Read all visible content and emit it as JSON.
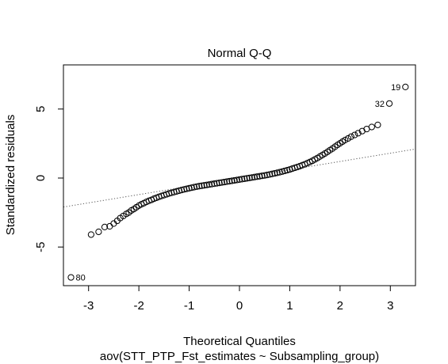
{
  "chart_data": {
    "type": "scatter",
    "title": "Normal Q-Q",
    "xlabel": "Theoretical Quantiles",
    "ylabel": "Standardized residuals",
    "subtitle": "aov(STT_PTP_Fst_estimates ~ Subsampling_group)",
    "xlim": [
      -3.5,
      3.5
    ],
    "ylim": [
      -7.8,
      8.2
    ],
    "x_ticks": [
      -3,
      -2,
      -1,
      0,
      1,
      2,
      3
    ],
    "x_tick_labels": [
      "-3",
      "-2",
      "-1",
      "0",
      "1",
      "2",
      "3"
    ],
    "y_ticks": [
      -5,
      0,
      5
    ],
    "y_tick_labels": [
      "-5",
      "0",
      "5"
    ],
    "reference_line": {
      "style": "dotted",
      "slope": 0.6,
      "intercept": 0
    },
    "grid": false,
    "point_style": "open-circle",
    "labeled_points": [
      {
        "label": "80",
        "x": -3.35,
        "y": -7.2
      },
      {
        "label": "32",
        "x": 2.98,
        "y": 5.4
      },
      {
        "label": "19",
        "x": 3.3,
        "y": 6.6
      }
    ],
    "points": [
      [
        -3.35,
        -7.2
      ],
      [
        -2.95,
        -4.1
      ],
      [
        -2.8,
        -3.9
      ],
      [
        -2.68,
        -3.55
      ],
      [
        -2.58,
        -3.5
      ],
      [
        -2.5,
        -3.3
      ],
      [
        -2.43,
        -3.1
      ],
      [
        -2.37,
        -2.9
      ],
      [
        -2.31,
        -2.75
      ],
      [
        -2.25,
        -2.6
      ],
      [
        -2.2,
        -2.5
      ],
      [
        -2.15,
        -2.35
      ],
      [
        -2.1,
        -2.25
      ],
      [
        -2.05,
        -2.12
      ],
      [
        -2.0,
        -2.0
      ],
      [
        -1.95,
        -1.9
      ],
      [
        -1.9,
        -1.82
      ],
      [
        -1.85,
        -1.73
      ],
      [
        -1.8,
        -1.65
      ],
      [
        -1.75,
        -1.58
      ],
      [
        -1.7,
        -1.5
      ],
      [
        -1.65,
        -1.43
      ],
      [
        -1.6,
        -1.36
      ],
      [
        -1.55,
        -1.3
      ],
      [
        -1.5,
        -1.24
      ],
      [
        -1.45,
        -1.18
      ],
      [
        -1.4,
        -1.12
      ],
      [
        -1.35,
        -1.07
      ],
      [
        -1.3,
        -1.02
      ],
      [
        -1.25,
        -0.97
      ],
      [
        -1.2,
        -0.92
      ],
      [
        -1.15,
        -0.87
      ],
      [
        -1.1,
        -0.82
      ],
      [
        -1.05,
        -0.78
      ],
      [
        -1.0,
        -0.74
      ],
      [
        -0.95,
        -0.7
      ],
      [
        -0.9,
        -0.66
      ],
      [
        -0.85,
        -0.62
      ],
      [
        -0.8,
        -0.59
      ],
      [
        -0.75,
        -0.56
      ],
      [
        -0.7,
        -0.53
      ],
      [
        -0.65,
        -0.5
      ],
      [
        -0.6,
        -0.47
      ],
      [
        -0.55,
        -0.44
      ],
      [
        -0.5,
        -0.41
      ],
      [
        -0.45,
        -0.38
      ],
      [
        -0.4,
        -0.35
      ],
      [
        -0.35,
        -0.32
      ],
      [
        -0.3,
        -0.29
      ],
      [
        -0.25,
        -0.26
      ],
      [
        -0.2,
        -0.23
      ],
      [
        -0.15,
        -0.2
      ],
      [
        -0.1,
        -0.17
      ],
      [
        -0.05,
        -0.14
      ],
      [
        0.0,
        -0.11
      ],
      [
        0.05,
        -0.08
      ],
      [
        0.1,
        -0.05
      ],
      [
        0.15,
        -0.02
      ],
      [
        0.2,
        0.01
      ],
      [
        0.25,
        0.04
      ],
      [
        0.3,
        0.07
      ],
      [
        0.35,
        0.1
      ],
      [
        0.4,
        0.13
      ],
      [
        0.45,
        0.16
      ],
      [
        0.5,
        0.19
      ],
      [
        0.55,
        0.22
      ],
      [
        0.6,
        0.26
      ],
      [
        0.65,
        0.3
      ],
      [
        0.7,
        0.34
      ],
      [
        0.75,
        0.38
      ],
      [
        0.8,
        0.42
      ],
      [
        0.85,
        0.47
      ],
      [
        0.9,
        0.52
      ],
      [
        0.95,
        0.57
      ],
      [
        1.0,
        0.62
      ],
      [
        1.05,
        0.68
      ],
      [
        1.1,
        0.74
      ],
      [
        1.15,
        0.8
      ],
      [
        1.2,
        0.86
      ],
      [
        1.25,
        0.93
      ],
      [
        1.3,
        1.0
      ],
      [
        1.35,
        1.08
      ],
      [
        1.4,
        1.16
      ],
      [
        1.45,
        1.25
      ],
      [
        1.5,
        1.35
      ],
      [
        1.55,
        1.45
      ],
      [
        1.6,
        1.56
      ],
      [
        1.65,
        1.67
      ],
      [
        1.7,
        1.78
      ],
      [
        1.75,
        1.9
      ],
      [
        1.8,
        2.02
      ],
      [
        1.85,
        2.14
      ],
      [
        1.9,
        2.27
      ],
      [
        1.95,
        2.4
      ],
      [
        2.0,
        2.52
      ],
      [
        2.05,
        2.64
      ],
      [
        2.1,
        2.75
      ],
      [
        2.16,
        2.87
      ],
      [
        2.22,
        3.0
      ],
      [
        2.29,
        3.12
      ],
      [
        2.36,
        3.25
      ],
      [
        2.44,
        3.4
      ],
      [
        2.53,
        3.55
      ],
      [
        2.63,
        3.7
      ],
      [
        2.75,
        3.85
      ],
      [
        2.98,
        5.4
      ],
      [
        3.3,
        6.6
      ]
    ]
  }
}
